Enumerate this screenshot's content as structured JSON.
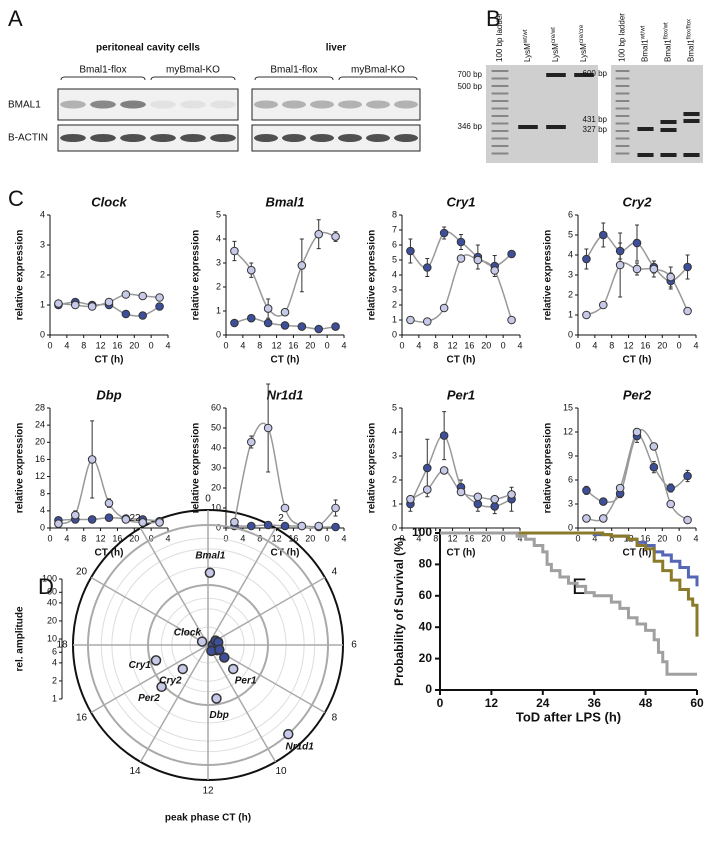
{
  "panel_labels": [
    "A",
    "B",
    "C",
    "D",
    "E"
  ],
  "blot": {
    "groups": [
      {
        "title": "peritoneal cavity cells",
        "genotypes": [
          "Bmal1-flox",
          "myBmal-KO"
        ]
      },
      {
        "title": "liver",
        "genotypes": [
          "Bmal1-flox",
          "myBmal-KO"
        ]
      }
    ],
    "rows": [
      "BMAL1",
      "B-ACTIN"
    ]
  },
  "gels": [
    {
      "lanes": [
        {
          "text": "100 bp ladder"
        },
        {
          "text": "LysM",
          "sup": "wt/wt"
        },
        {
          "text": "LysM",
          "sup": "cre/wt"
        },
        {
          "text": "LysM",
          "sup": "cre/cre"
        }
      ],
      "sizes": [
        "700 bp",
        "500 bp",
        "346 bp"
      ]
    },
    {
      "lanes": [
        {
          "text": "100 bp ladder"
        },
        {
          "text": "Bmal1",
          "sup": "wt/wt"
        },
        {
          "text": "Bmal1",
          "sup": "flox/wt"
        },
        {
          "text": "Bmal1",
          "sup": "flox/flox"
        }
      ],
      "sizes": [
        "600 bp",
        "431 bp",
        "327 bp"
      ]
    }
  ],
  "chart_data": [
    {
      "type": "line",
      "title": "Clock",
      "ylabel": "relative expression",
      "xlabel": "CT (h)",
      "x": [
        2,
        6,
        10,
        14,
        18,
        22,
        26
      ],
      "xlim": [
        0,
        28
      ],
      "xticks": [
        0,
        4,
        8,
        12,
        16,
        20,
        {
          "value": 24,
          "label": "0"
        },
        {
          "value": 28,
          "label": "4"
        }
      ],
      "ylim": [
        0,
        4
      ],
      "yticks": [
        0,
        1,
        2,
        3,
        4
      ],
      "fit_color": "#999999",
      "series": [
        {
          "color": "#3d4f9a",
          "values": [
            1.0,
            1.1,
            1.0,
            1.0,
            0.7,
            0.65,
            0.95
          ]
        },
        {
          "color": "#c6c9e8",
          "values": [
            1.05,
            1.0,
            0.95,
            1.1,
            1.35,
            1.3,
            1.25
          ]
        }
      ]
    },
    {
      "type": "line",
      "title": "Bmal1",
      "ylabel": "relative expression",
      "xlabel": "CT (h)",
      "x": [
        2,
        6,
        10,
        14,
        18,
        22,
        26
      ],
      "xlim": [
        0,
        28
      ],
      "xticks": [
        0,
        4,
        8,
        12,
        16,
        20,
        {
          "value": 24,
          "label": "0"
        },
        {
          "value": 28,
          "label": "4"
        }
      ],
      "ylim": [
        0,
        5
      ],
      "yticks": [
        0,
        1,
        2,
        3,
        4,
        5
      ],
      "fit_color": "#999999",
      "series": [
        {
          "color": "#3d4f9a",
          "values": [
            0.5,
            0.7,
            0.5,
            0.4,
            0.35,
            0.25,
            0.35
          ]
        },
        {
          "color": "#c6c9e8",
          "values": [
            3.5,
            2.7,
            1.1,
            0.95,
            2.9,
            4.2,
            4.1
          ],
          "errors": [
            0.4,
            0.3,
            0.4,
            0.1,
            1.1,
            0.6,
            0.2
          ]
        }
      ]
    },
    {
      "type": "line",
      "title": "Cry1",
      "ylabel": "relative expression",
      "xlabel": "CT (h)",
      "x": [
        2,
        6,
        10,
        14,
        18,
        22,
        26
      ],
      "xlim": [
        0,
        28
      ],
      "xticks": [
        0,
        4,
        8,
        12,
        16,
        20,
        {
          "value": 24,
          "label": "0"
        },
        {
          "value": 28,
          "label": "4"
        }
      ],
      "ylim": [
        0,
        8
      ],
      "yticks": [
        0,
        1,
        2,
        3,
        4,
        5,
        6,
        7,
        8
      ],
      "fit_color": "#999999",
      "series": [
        {
          "color": "#3d4f9a",
          "values": [
            5.6,
            4.5,
            6.8,
            6.2,
            5.2,
            4.6,
            5.4
          ],
          "errors": [
            0.8,
            0.6,
            0.4,
            0.5,
            0.8,
            0.7,
            0.2
          ]
        },
        {
          "color": "#c6c9e8",
          "values": [
            1.0,
            0.9,
            1.8,
            5.1,
            5.0,
            4.3,
            1.0
          ]
        }
      ]
    },
    {
      "type": "line",
      "title": "Cry2",
      "ylabel": "relative expression",
      "xlabel": "CT (h)",
      "x": [
        2,
        6,
        10,
        14,
        18,
        22,
        26
      ],
      "xlim": [
        0,
        28
      ],
      "xticks": [
        0,
        4,
        8,
        12,
        16,
        20,
        {
          "value": 24,
          "label": "0"
        },
        {
          "value": 28,
          "label": "4"
        }
      ],
      "ylim": [
        0,
        6
      ],
      "yticks": [
        0,
        1,
        2,
        3,
        4,
        5,
        6
      ],
      "fit_color": "#999999",
      "series": [
        {
          "color": "#3d4f9a",
          "values": [
            3.8,
            5.0,
            4.2,
            4.6,
            3.4,
            2.7,
            3.4
          ],
          "errors": [
            0.5,
            0.6,
            0.4,
            0.9,
            0.3,
            0.4,
            0.6
          ]
        },
        {
          "color": "#c6c9e8",
          "values": [
            1.0,
            1.5,
            3.5,
            3.3,
            3.3,
            2.9,
            1.2
          ],
          "errors": [
            0.1,
            0.1,
            1.6,
            0.3,
            0.4,
            0.5,
            0.1
          ]
        }
      ]
    },
    {
      "type": "line",
      "title": "Dbp",
      "ylabel": "relative expression",
      "xlabel": "CT (h)",
      "x": [
        2,
        6,
        10,
        14,
        18,
        22,
        26
      ],
      "xlim": [
        0,
        28
      ],
      "xticks": [
        0,
        4,
        8,
        12,
        16,
        20,
        {
          "value": 24,
          "label": "0"
        },
        {
          "value": 28,
          "label": "4"
        }
      ],
      "ylim": [
        0,
        28
      ],
      "yticks": [
        0,
        4,
        8,
        12,
        16,
        20,
        24,
        28
      ],
      "fit_color": "#999999",
      "series": [
        {
          "color": "#3d4f9a",
          "values": [
            1.8,
            2.0,
            2.0,
            2.4,
            2.2,
            2.0,
            1.6
          ]
        },
        {
          "color": "#c6c9e8",
          "values": [
            1.0,
            3.0,
            16,
            5.8,
            2.0,
            1.3,
            1.3
          ],
          "errors": [
            0.3,
            1,
            9,
            1,
            0.3,
            0.3,
            0.2
          ]
        }
      ]
    },
    {
      "type": "line",
      "title": "Nr1d1",
      "ylabel": "relative expression",
      "xlabel": "CT (h)",
      "x": [
        2,
        6,
        10,
        14,
        18,
        22,
        26
      ],
      "xlim": [
        0,
        28
      ],
      "xticks": [
        0,
        4,
        8,
        12,
        16,
        20,
        {
          "value": 24,
          "label": "0"
        },
        {
          "value": 28,
          "label": "4"
        }
      ],
      "ylim": [
        0,
        60
      ],
      "yticks": [
        0,
        10,
        20,
        30,
        40,
        50,
        60
      ],
      "fit_color": "#999999",
      "series": [
        {
          "color": "#3d4f9a",
          "values": [
            1,
            1,
            1.5,
            1,
            1,
            0.5,
            0.5
          ]
        },
        {
          "color": "#c6c9e8",
          "values": [
            3,
            43,
            50,
            10,
            1,
            1,
            10
          ],
          "errors": [
            1,
            3,
            22,
            1,
            0.5,
            0.5,
            4
          ]
        }
      ]
    },
    {
      "type": "line",
      "title": "Per1",
      "ylabel": "relative expression",
      "xlabel": "CT (h)",
      "x": [
        2,
        6,
        10,
        14,
        18,
        22,
        26
      ],
      "xlim": [
        0,
        28
      ],
      "xticks": [
        0,
        4,
        8,
        12,
        16,
        20,
        {
          "value": 24,
          "label": "0"
        },
        {
          "value": 28,
          "label": "4"
        }
      ],
      "ylim": [
        0,
        5
      ],
      "yticks": [
        0,
        1,
        2,
        3,
        4,
        5
      ],
      "fit_color": "#999999",
      "series": [
        {
          "color": "#3d4f9a",
          "values": [
            1.0,
            2.5,
            3.85,
            1.7,
            1.0,
            0.9,
            1.2
          ],
          "errors": [
            0.3,
            1.2,
            1.0,
            0.3,
            0.3,
            0.3,
            0.5
          ]
        },
        {
          "color": "#c6c9e8",
          "values": [
            1.2,
            1.6,
            2.4,
            1.5,
            1.3,
            1.2,
            1.4
          ]
        }
      ]
    },
    {
      "type": "line",
      "title": "Per2",
      "ylabel": "relative expression",
      "xlabel": "CT (h)",
      "x": [
        2,
        6,
        10,
        14,
        18,
        22,
        26
      ],
      "xlim": [
        0,
        28
      ],
      "xticks": [
        0,
        4,
        8,
        12,
        16,
        20,
        {
          "value": 24,
          "label": "0"
        },
        {
          "value": 28,
          "label": "4"
        }
      ],
      "ylim": [
        0,
        15
      ],
      "yticks": [
        0,
        3,
        6,
        9,
        12,
        15
      ],
      "fit_color": "#999999",
      "series": [
        {
          "color": "#3d4f9a",
          "values": [
            4.7,
            3.3,
            4.3,
            11.5,
            7.6,
            5.0,
            6.5
          ],
          "errors": [
            0.5,
            0.3,
            0.5,
            0.8,
            0.7,
            0.5,
            0.7
          ]
        },
        {
          "color": "#c6c9e8",
          "values": [
            1.2,
            1.2,
            5.0,
            12,
            10.2,
            3.0,
            1.0
          ]
        }
      ]
    },
    {
      "type": "polar",
      "rlabel": "rel. amplitude",
      "xlabel": "peak phase CT (h)",
      "categories": [
        "Bmal1",
        "Clock",
        "Cry1",
        "Cry2",
        "Per2",
        "Dbp",
        "Per1",
        "Nr1d1"
      ],
      "alim": [
        0,
        24
      ],
      "aticks": [
        0,
        2,
        4,
        6,
        8,
        10,
        12,
        14,
        16,
        18,
        20,
        22
      ],
      "rlim": [
        1,
        100
      ],
      "rticks": [
        1,
        2,
        4,
        6,
        10,
        20,
        40,
        60,
        100
      ],
      "log": true,
      "series": [
        {
          "color": "#3d4f9a",
          "phase": [
            7,
            6,
            4,
            5,
            8,
            10,
            8.5,
            7.5
          ],
          "values": [
            1.4,
            1.2,
            1.4,
            1.5,
            1.5,
            1.3,
            2.2,
            1.6
          ]
        },
        {
          "color": "#c6c9e8",
          "phase": [
            0.1,
            20,
            16.9,
            15.1,
            15.2,
            11.4,
            8.9,
            9.2
          ],
          "values": [
            16,
            1.3,
            8,
            3.8,
            11,
            8,
            3.8,
            100
          ]
        }
      ]
    },
    {
      "type": "step",
      "ylabel": "Probability of Survival (%)",
      "xlabel": "ToD after LPS (h)",
      "xlim": [
        0,
        60
      ],
      "xticks": [
        0,
        12,
        24,
        36,
        48,
        60
      ],
      "ylim": [
        0,
        100
      ],
      "yticks": [
        0,
        20,
        40,
        60,
        80,
        100
      ],
      "series": [
        {
          "color": "#5566b5",
          "x": [
            0,
            36,
            40,
            44,
            46,
            48,
            50,
            52,
            54,
            56,
            58,
            60
          ],
          "values": [
            100,
            99,
            98,
            96,
            94,
            92,
            88,
            86,
            82,
            78,
            72,
            66
          ]
        },
        {
          "color": "#8a7a2a",
          "x": [
            0,
            38,
            40,
            44,
            46,
            48,
            50,
            52,
            54,
            56,
            58,
            59,
            60
          ],
          "values": [
            100,
            99,
            98,
            96,
            92,
            90,
            82,
            76,
            70,
            64,
            58,
            54,
            34
          ]
        },
        {
          "color": "#a0a0a0",
          "x": [
            0,
            18,
            20,
            22,
            24,
            25,
            26,
            28,
            30,
            32,
            34,
            36,
            40,
            42,
            44,
            46,
            48,
            50,
            51,
            52,
            53,
            60
          ],
          "values": [
            100,
            98,
            96,
            92,
            88,
            80,
            76,
            72,
            68,
            66,
            62,
            60,
            56,
            52,
            46,
            42,
            38,
            32,
            24,
            18,
            10,
            10
          ]
        }
      ]
    }
  ]
}
